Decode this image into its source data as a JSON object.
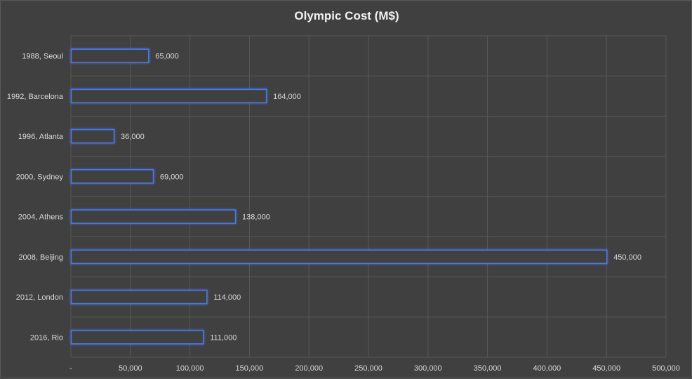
{
  "chart_data": {
    "type": "bar",
    "orientation": "horizontal",
    "title": "Olympic Cost (M$)",
    "categories": [
      "1988, Seoul",
      "1992, Barcelona",
      "1996, Atlanta",
      "2000, Sydney",
      "2004, Athens",
      "2008, Beijing",
      "2012, London",
      "2016, Rio"
    ],
    "values": [
      65000,
      164000,
      36000,
      69000,
      138000,
      450000,
      114000,
      111000
    ],
    "data_labels": [
      "65,000",
      "164,000",
      "36,000",
      "69,000",
      "138,000",
      "450,000",
      "114,000",
      "111,000"
    ],
    "x_ticks": [
      0,
      50000,
      100000,
      150000,
      200000,
      250000,
      300000,
      350000,
      400000,
      450000,
      500000
    ],
    "x_tick_labels": [
      "-",
      "50,000",
      "100,000",
      "150,000",
      "200,000",
      "250,000",
      "300,000",
      "350,000",
      "400,000",
      "450,000",
      "500,000"
    ],
    "xlim": [
      0,
      500000
    ],
    "grid": true,
    "colors": {
      "background": "#404040",
      "bar_fill": "#404040",
      "bar_stroke": "#4a78e8",
      "gridline": "#595959",
      "text": "#d9d9d9",
      "title": "#f2f2f2"
    }
  }
}
